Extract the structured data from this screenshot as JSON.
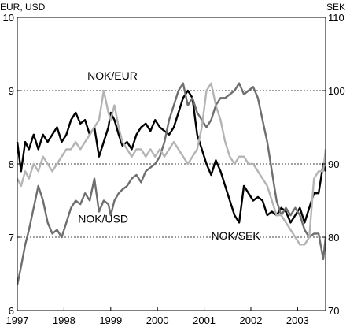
{
  "chart_data": {
    "type": "line",
    "left_axis_label": "EUR, USD",
    "right_axis_label": "SEK",
    "left_ylim": [
      6,
      10
    ],
    "right_ylim": [
      70,
      110
    ],
    "left_yticks": [
      "6",
      "7",
      "8",
      "9",
      "10"
    ],
    "right_yticks": [
      "70",
      "80",
      "90",
      "100",
      "110"
    ],
    "xlim": [
      1997,
      2003.6
    ],
    "xticks": [
      "1997",
      "1998",
      "1999",
      "2000",
      "2001",
      "2002",
      "2003"
    ],
    "grid": true,
    "series": [
      {
        "name": "NOK/EUR",
        "axis": "left",
        "color": "#000000",
        "x": [
          1997.0,
          1997.08,
          1997.17,
          1997.25,
          1997.35,
          1997.45,
          1997.55,
          1997.65,
          1997.75,
          1997.85,
          1997.95,
          1998.05,
          1998.15,
          1998.25,
          1998.35,
          1998.45,
          1998.55,
          1998.65,
          1998.75,
          1998.85,
          1998.95,
          1999.0,
          1999.08,
          1999.17,
          1999.25,
          1999.35,
          1999.45,
          1999.55,
          1999.65,
          1999.75,
          1999.85,
          1999.95,
          2000.05,
          2000.15,
          2000.25,
          2000.35,
          2000.45,
          2000.55,
          2000.65,
          2000.75,
          2000.85,
          2000.95,
          2001.05,
          2001.15,
          2001.25,
          2001.35,
          2001.45,
          2001.55,
          2001.65,
          2001.75,
          2001.85,
          2001.95,
          2002.05,
          2002.15,
          2002.25,
          2002.35,
          2002.45,
          2002.55,
          2002.65,
          2002.75,
          2002.85,
          2002.95,
          2003.05,
          2003.15,
          2003.25,
          2003.35,
          2003.45,
          2003.55,
          2003.6
        ],
        "values": [
          8.3,
          7.9,
          8.3,
          8.2,
          8.4,
          8.2,
          8.4,
          8.3,
          8.4,
          8.5,
          8.3,
          8.4,
          8.6,
          8.7,
          8.55,
          8.6,
          8.4,
          8.5,
          8.1,
          8.3,
          8.5,
          8.7,
          8.6,
          8.4,
          8.25,
          8.3,
          8.2,
          8.4,
          8.5,
          8.55,
          8.45,
          8.6,
          8.5,
          8.45,
          8.4,
          8.5,
          8.7,
          8.9,
          9.0,
          8.9,
          8.4,
          8.2,
          8.0,
          7.85,
          8.05,
          7.9,
          7.7,
          7.5,
          7.3,
          7.2,
          7.7,
          7.6,
          7.5,
          7.55,
          7.5,
          7.3,
          7.35,
          7.3,
          7.4,
          7.35,
          7.2,
          7.3,
          7.4,
          7.2,
          7.4,
          7.6,
          7.6,
          8.0,
          7.9
        ]
      },
      {
        "name": "NOK/USD",
        "axis": "left",
        "color": "#6e6e6e",
        "x": [
          1997.0,
          1997.08,
          1997.17,
          1997.25,
          1997.35,
          1997.45,
          1997.55,
          1997.65,
          1997.75,
          1997.85,
          1997.95,
          1998.05,
          1998.15,
          1998.25,
          1998.35,
          1998.45,
          1998.55,
          1998.65,
          1998.75,
          1998.85,
          1998.95,
          1999.0,
          1999.08,
          1999.17,
          1999.25,
          1999.35,
          1999.45,
          1999.55,
          1999.65,
          1999.75,
          1999.85,
          1999.95,
          2000.05,
          2000.15,
          2000.25,
          2000.35,
          2000.45,
          2000.55,
          2000.65,
          2000.75,
          2000.85,
          2000.95,
          2001.05,
          2001.15,
          2001.25,
          2001.35,
          2001.45,
          2001.55,
          2001.65,
          2001.75,
          2001.85,
          2001.95,
          2002.05,
          2002.15,
          2002.25,
          2002.35,
          2002.45,
          2002.55,
          2002.65,
          2002.75,
          2002.85,
          2002.95,
          2003.05,
          2003.15,
          2003.25,
          2003.35,
          2003.45,
          2003.55,
          2003.6
        ],
        "values": [
          6.35,
          6.6,
          6.9,
          7.1,
          7.4,
          7.7,
          7.5,
          7.2,
          7.05,
          7.1,
          7.0,
          7.2,
          7.4,
          7.5,
          7.45,
          7.6,
          7.5,
          7.8,
          7.35,
          7.5,
          7.45,
          7.3,
          7.5,
          7.6,
          7.65,
          7.7,
          7.8,
          7.85,
          7.75,
          7.9,
          7.95,
          8.0,
          8.1,
          8.3,
          8.6,
          8.8,
          9.0,
          9.1,
          8.8,
          8.9,
          8.7,
          8.6,
          8.5,
          8.6,
          8.8,
          8.9,
          8.9,
          8.95,
          9.0,
          9.1,
          8.95,
          9.0,
          9.05,
          8.9,
          8.6,
          8.3,
          7.9,
          7.5,
          7.3,
          7.4,
          7.3,
          7.4,
          7.3,
          7.1,
          7.0,
          7.05,
          7.05,
          6.7,
          7.0
        ]
      },
      {
        "name": "NOK/SEK",
        "axis": "right",
        "color": "#b4b4b4",
        "x": [
          1997.0,
          1997.08,
          1997.17,
          1997.25,
          1997.35,
          1997.45,
          1997.55,
          1997.65,
          1997.75,
          1997.85,
          1997.95,
          1998.05,
          1998.15,
          1998.25,
          1998.35,
          1998.45,
          1998.55,
          1998.65,
          1998.75,
          1998.85,
          1998.95,
          1999.0,
          1999.08,
          1999.17,
          1999.25,
          1999.35,
          1999.45,
          1999.55,
          1999.65,
          1999.75,
          1999.85,
          1999.95,
          2000.05,
          2000.15,
          2000.25,
          2000.35,
          2000.45,
          2000.55,
          2000.65,
          2000.75,
          2000.85,
          2000.95,
          2001.05,
          2001.15,
          2001.25,
          2001.35,
          2001.45,
          2001.55,
          2001.65,
          2001.75,
          2001.85,
          2001.95,
          2002.05,
          2002.15,
          2002.25,
          2002.35,
          2002.45,
          2002.55,
          2002.65,
          2002.75,
          2002.85,
          2002.95,
          2003.05,
          2003.15,
          2003.25,
          2003.35,
          2003.45,
          2003.55,
          2003.6
        ],
        "values": [
          88,
          87,
          89,
          88,
          90,
          89,
          91,
          90,
          89,
          90,
          91,
          92,
          92,
          93,
          92,
          93,
          94,
          95,
          96,
          100,
          97,
          96,
          98,
          95,
          93,
          92,
          91,
          92,
          92,
          91,
          92,
          91,
          92,
          91,
          92,
          93,
          92,
          91,
          90,
          91,
          92,
          95,
          100,
          101,
          98,
          96,
          93,
          91,
          90,
          91,
          91,
          90,
          90,
          89,
          88,
          87,
          85,
          83,
          83,
          82,
          81,
          80,
          79,
          79,
          80,
          88,
          89,
          89,
          92
        ]
      }
    ],
    "annotations": [
      {
        "text": "NOK/EUR",
        "x": 1998.5,
        "y_left": 9.15
      },
      {
        "text": "NOK/USD",
        "x": 1998.3,
        "y_left": 7.2
      },
      {
        "text": "NOK/SEK",
        "x": 2001.15,
        "y_left": 6.97
      }
    ]
  }
}
